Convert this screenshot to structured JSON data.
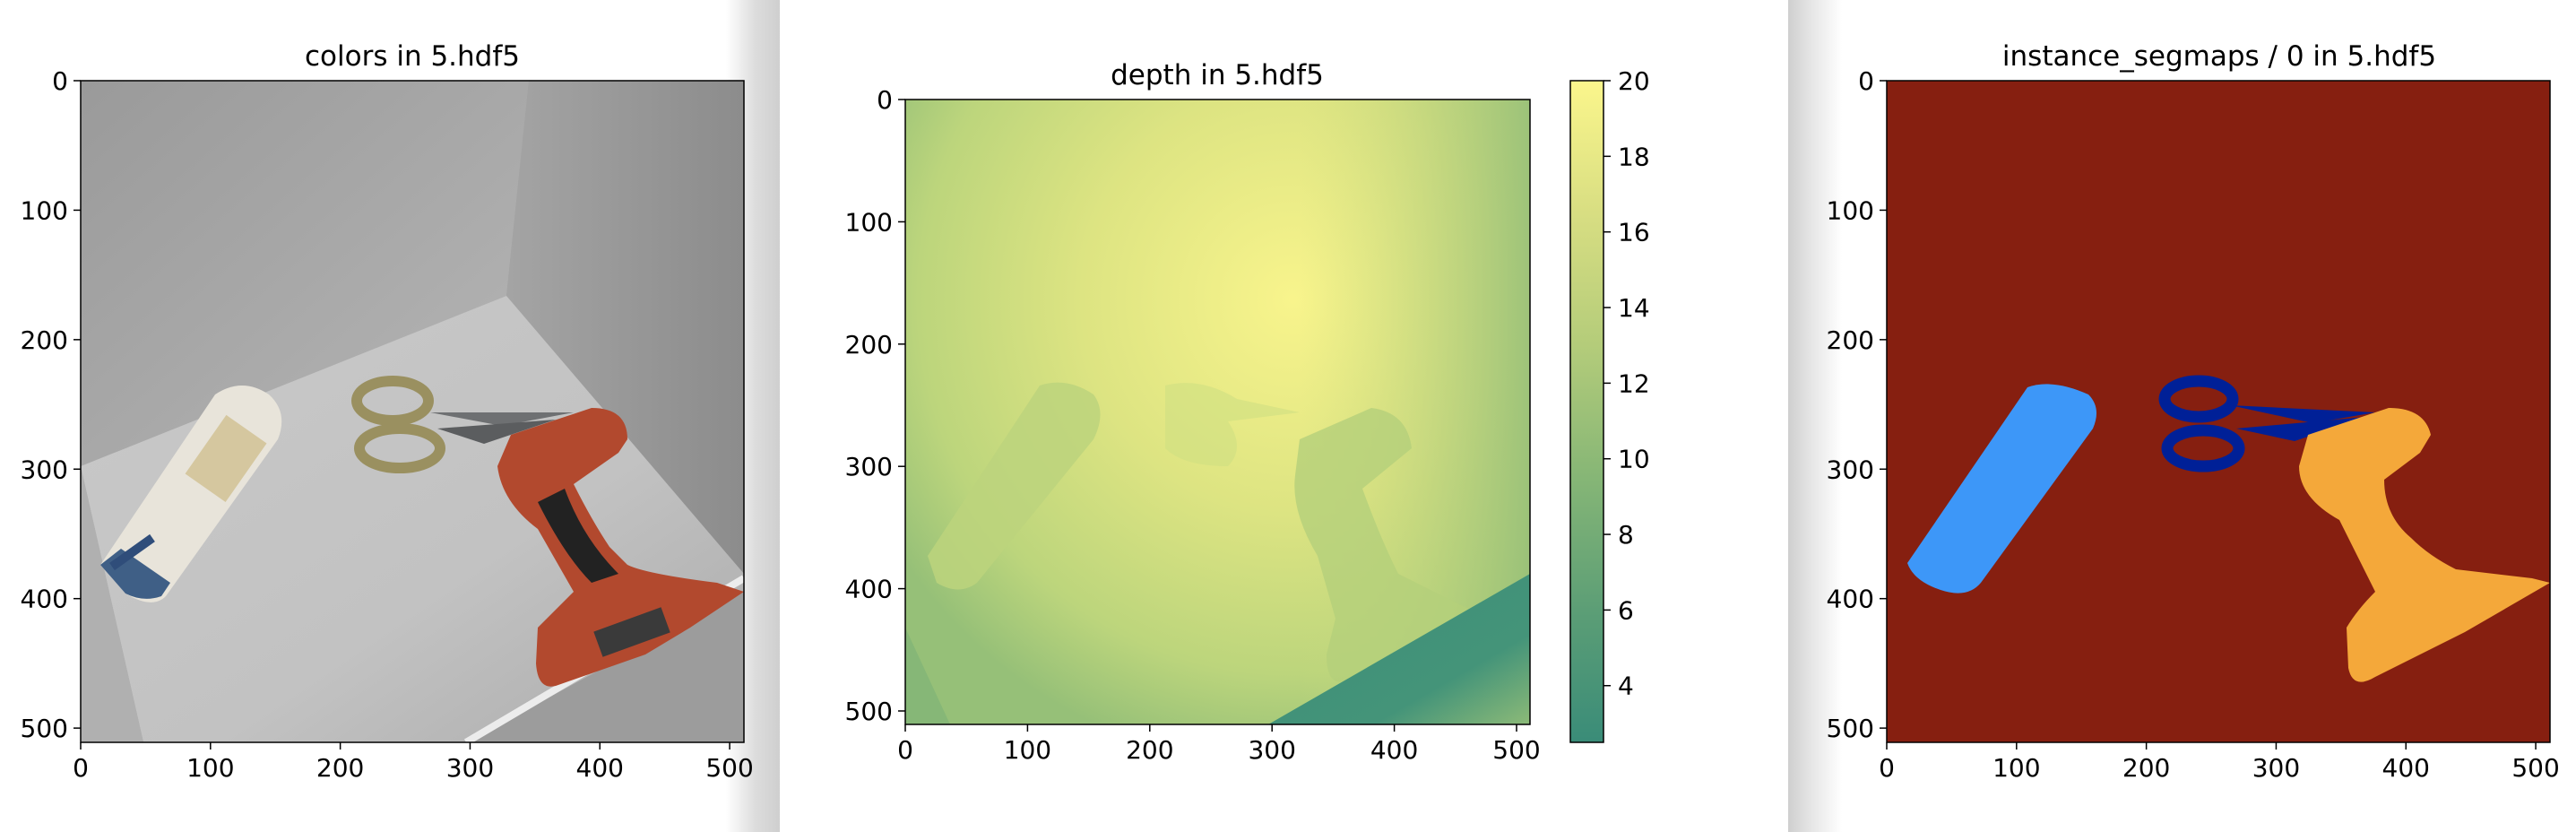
{
  "figures": [
    {
      "title": "colors in 5.hdf5",
      "kind": "image",
      "image_content": "rgb render: gray box interior with shampoo bottle, scissors and cordless drill",
      "xticks": [
        "0",
        "100",
        "200",
        "300",
        "400",
        "500"
      ],
      "yticks": [
        "0",
        "100",
        "200",
        "300",
        "400",
        "500"
      ]
    },
    {
      "title": "depth in 5.hdf5",
      "kind": "depth",
      "xticks": [
        "0",
        "100",
        "200",
        "300",
        "400",
        "500"
      ],
      "yticks": [
        "0",
        "100",
        "200",
        "300",
        "400",
        "500"
      ],
      "colorbar": {
        "ticks": [
          "4",
          "6",
          "8",
          "10",
          "12",
          "14",
          "16",
          "18",
          "20"
        ],
        "range": [
          2.5,
          20
        ],
        "colormap": [
          "#3a8c78",
          "#5c9e76",
          "#86b676",
          "#b4cc7a",
          "#d8de82",
          "#fbf68c"
        ]
      }
    },
    {
      "title": "instance_segmaps / 0 in 5.hdf5",
      "kind": "segmentation",
      "xticks": [
        "0",
        "100",
        "200",
        "300",
        "400",
        "500"
      ],
      "yticks": [
        "0",
        "100",
        "200",
        "300",
        "400",
        "500"
      ],
      "colors": {
        "background": "#861f10",
        "bottle": "#3d97f8",
        "scissors": "#002097",
        "drill": "#f4a83a"
      }
    }
  ],
  "chart_data": [
    {
      "type": "heatmap",
      "title": "colors in 5.hdf5",
      "xlim": [
        0,
        511
      ],
      "ylim": [
        511,
        0
      ]
    },
    {
      "type": "heatmap",
      "title": "depth in 5.hdf5",
      "xlim": [
        0,
        511
      ],
      "ylim": [
        511,
        0
      ],
      "colorbar_range": [
        2.5,
        20
      ]
    },
    {
      "type": "heatmap",
      "title": "instance_segmaps / 0 in 5.hdf5",
      "xlim": [
        0,
        511
      ],
      "ylim": [
        511,
        0
      ]
    }
  ]
}
